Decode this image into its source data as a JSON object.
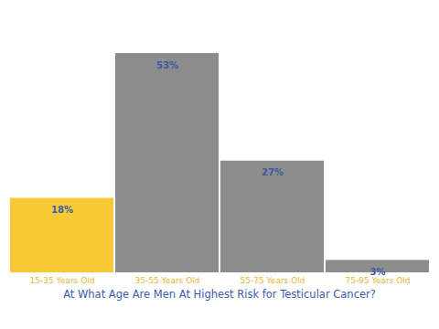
{
  "chart_data": {
    "type": "bar",
    "title": "At What Age Are Men At Highest Risk for Testicular Cancer?",
    "categories": [
      "15-35 Years Old",
      "35-55 Years Old",
      "55-75 Years Old",
      "75-95 Years Old"
    ],
    "values": [
      18,
      53,
      27,
      3
    ],
    "value_labels": [
      "18%",
      "53%",
      "27%",
      "3%"
    ],
    "colors": [
      "#f7c935",
      "#8c8c8c",
      "#8c8c8c",
      "#8c8c8c"
    ],
    "ylim": [
      0,
      55
    ],
    "data_labels": true,
    "tick_labels": "x",
    "grid": false
  }
}
